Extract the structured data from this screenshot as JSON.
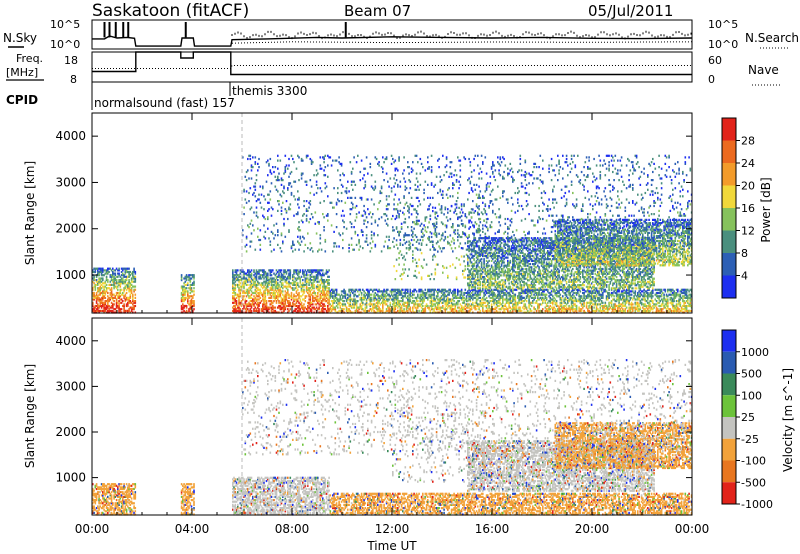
{
  "header": {
    "station": "Saskatoon (fitACF)",
    "beam": "Beam 07",
    "date": "05/Jul/2011"
  },
  "chart_data": [
    {
      "type": "line",
      "panel": "noise",
      "left_label": "N.Sky",
      "right_label": "N.Search",
      "left_ticks": [
        "10^5",
        "10^0"
      ],
      "right_ticks": [
        "10^5",
        "10^0"
      ],
      "series": [
        {
          "name": "N.Sky",
          "style": "solid",
          "x": [
            0.0,
            0.5,
            0.7,
            1.0,
            1.4,
            1.7,
            1.75,
            3.55,
            3.6,
            4.05,
            4.1,
            5.55,
            5.6,
            7.0,
            9.0,
            10.0,
            12.0,
            14.0,
            16.0,
            18.0,
            20.0,
            22.0,
            24.0
          ],
          "y_frac": [
            0.35,
            0.35,
            0.45,
            0.38,
            0.4,
            0.37,
            0.1,
            0.1,
            0.38,
            0.38,
            0.1,
            0.1,
            0.32,
            0.35,
            0.4,
            0.38,
            0.42,
            0.4,
            0.38,
            0.4,
            0.37,
            0.36,
            0.38
          ]
        },
        {
          "name": "N.Search",
          "style": "dotted",
          "x": [
            5.6,
            8.0,
            12.0,
            16.0,
            20.0,
            24.0
          ],
          "y_frac": [
            0.2,
            0.25,
            0.22,
            0.24,
            0.23,
            0.25
          ]
        }
      ],
      "spikes_x": [
        0.5,
        0.7,
        0.95,
        1.25,
        1.45,
        3.75,
        10.15
      ]
    },
    {
      "type": "line",
      "panel": "frequency",
      "left_label": "Freq.",
      "left_unit": "[MHz]",
      "right_label": "Nave",
      "left_ticks": [
        "18",
        "8"
      ],
      "right_ticks": [
        "60",
        "0"
      ],
      "series": [
        {
          "name": "Freq.",
          "style": "solid",
          "x": [
            0.0,
            1.75,
            1.75,
            3.55,
            3.55,
            4.05,
            4.05,
            5.55,
            5.55,
            24.0
          ],
          "mhz": [
            11.5,
            11.5,
            18.0,
            18.0,
            16.0,
            16.0,
            18.0,
            18.0,
            10.5,
            10.5
          ]
        },
        {
          "name": "Nave",
          "style": "dotted",
          "x": [
            0.0,
            5.55,
            5.6,
            24.0
          ],
          "y_frac": [
            0.45,
            0.45,
            0.55,
            0.55
          ]
        }
      ]
    },
    {
      "type": "table",
      "panel": "cpid",
      "label": "CPID",
      "programs": [
        {
          "name": "normalsound (fast) 157",
          "start": 0.0
        },
        {
          "name": "themis 3300",
          "start": 5.55
        }
      ]
    },
    {
      "type": "heatmap",
      "panel": "power",
      "ylabel": "Slant Range [km]",
      "yticks": [
        "1000",
        "2000",
        "3000",
        "4000"
      ],
      "ylim": [
        180,
        4500
      ],
      "cbar_label": "Power [dB]",
      "cbar_ticks": [
        "4",
        "8",
        "12",
        "16",
        "20",
        "24",
        "28"
      ],
      "colors": [
        "#1d2ff0",
        "#2c5fb5",
        "#4a8f7e",
        "#86c25c",
        "#f1d83a",
        "#f39b2a",
        "#ec6a1f",
        "#e2231a"
      ],
      "scatter_regions": [
        {
          "t": [
            0.0,
            1.75
          ],
          "r": [
            180,
            1150
          ],
          "high": 0.82
        },
        {
          "t": [
            3.55,
            4.05
          ],
          "r": [
            180,
            1000
          ],
          "high": 0.8
        },
        {
          "t": [
            5.6,
            9.5
          ],
          "r": [
            180,
            1100
          ],
          "high": 0.8
        },
        {
          "t": [
            9.5,
            24.0
          ],
          "r": [
            180,
            700
          ],
          "high": 0.5
        },
        {
          "t": [
            12.0,
            15.8
          ],
          "r": [
            900,
            2500
          ],
          "high": 0.3
        },
        {
          "t": [
            15.0,
            22.5
          ],
          "r": [
            700,
            1800
          ],
          "high": 0.25
        },
        {
          "t": [
            18.5,
            24.0
          ],
          "r": [
            1200,
            2200
          ],
          "high": 0.35
        },
        {
          "t": [
            6.0,
            24.0
          ],
          "r": [
            1500,
            3600
          ],
          "high": 0.1
        }
      ]
    },
    {
      "type": "heatmap",
      "panel": "velocity",
      "ylabel": "Slant Range [km]",
      "yticks": [
        "1000",
        "2000",
        "3000",
        "4000"
      ],
      "ylim": [
        180,
        4500
      ],
      "cbar_label": "Velocity [m s^-1]",
      "cbar_ticks": [
        "1000",
        "500",
        "100",
        "25",
        "-25",
        "-100",
        "-500",
        "-1000"
      ],
      "colors": [
        "#1d2ff0",
        "#2a5bb1",
        "#3a8a5a",
        "#6cc33a",
        "#c4c4c0",
        "#f2a23a",
        "#e8761f",
        "#e2231a"
      ],
      "scatter_regions": [
        {
          "t": [
            0.0,
            1.75
          ],
          "r": [
            180,
            850
          ],
          "dominant": 5
        },
        {
          "t": [
            3.55,
            4.05
          ],
          "r": [
            180,
            850
          ],
          "dominant": 5
        },
        {
          "t": [
            5.6,
            9.5
          ],
          "r": [
            180,
            1000
          ],
          "dominant": 4
        },
        {
          "t": [
            9.5,
            24.0
          ],
          "r": [
            180,
            650
          ],
          "dominant": 5
        },
        {
          "t": [
            12.0,
            15.8
          ],
          "r": [
            900,
            2500
          ],
          "dominant": 4
        },
        {
          "t": [
            15.0,
            22.5
          ],
          "r": [
            700,
            1800
          ],
          "dominant": 4
        },
        {
          "t": [
            18.5,
            24.0
          ],
          "r": [
            1200,
            2200
          ],
          "dominant": 5
        },
        {
          "t": [
            6.0,
            24.0
          ],
          "r": [
            1500,
            3600
          ],
          "dominant": 4
        }
      ]
    }
  ],
  "xaxis": {
    "label": "Time UT",
    "ticks": [
      "00:00",
      "04:00",
      "08:00",
      "12:00",
      "16:00",
      "20:00",
      "00:00"
    ],
    "xlim": [
      0,
      24
    ]
  }
}
